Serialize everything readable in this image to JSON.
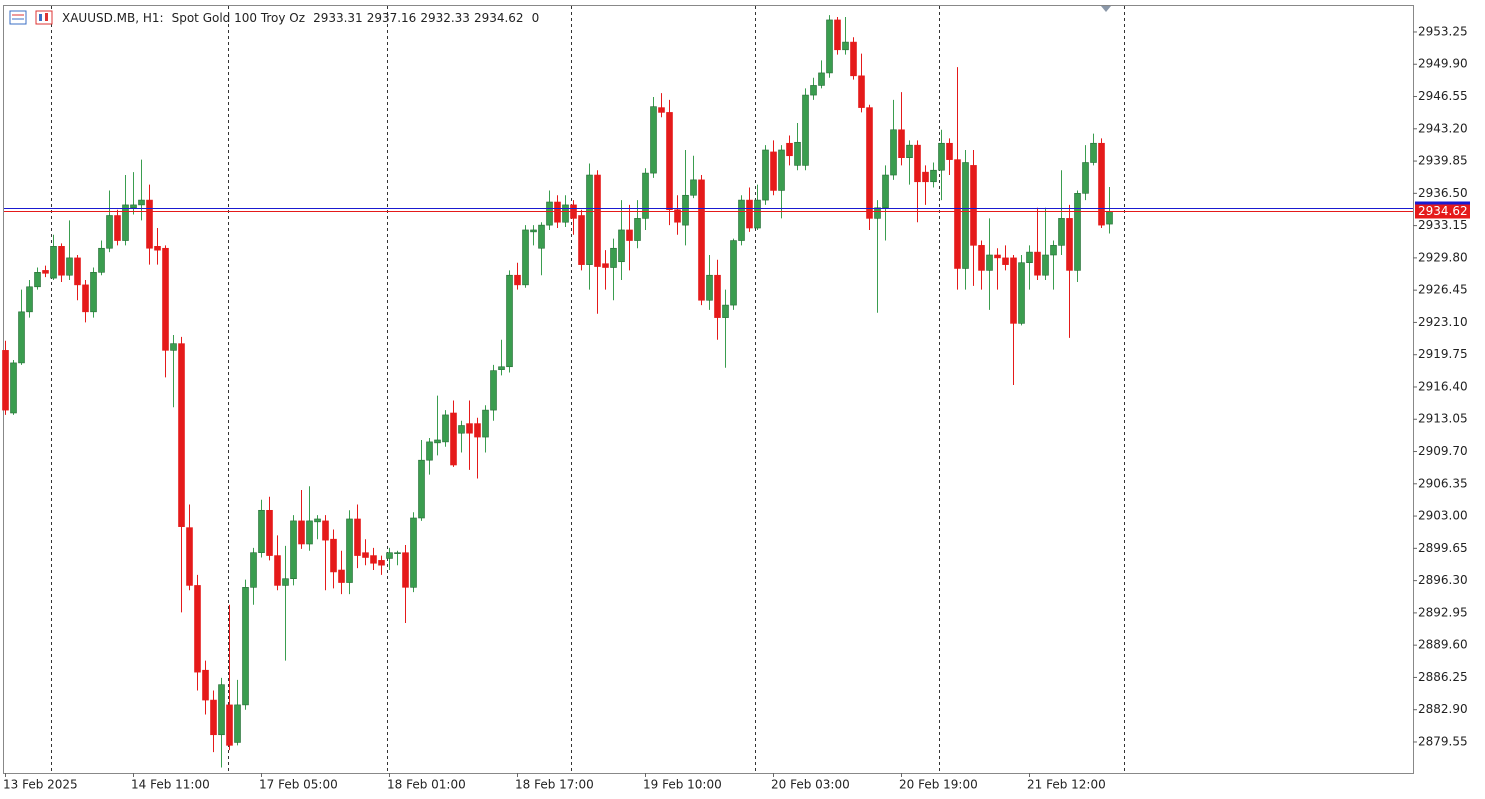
{
  "header": {
    "symbol": "XAUUSD.MB, H1:",
    "description": "Spot Gold 100 Troy Oz",
    "open": 2933.31,
    "high": 2937.16,
    "low": 2932.33,
    "close": 2934.62,
    "volume": 0
  },
  "chart_data": {
    "type": "candlestick",
    "categories": [
      "13 Feb 2025",
      null,
      null,
      null,
      null,
      null,
      null,
      null,
      null,
      null,
      null,
      null,
      null,
      null,
      null,
      null,
      "14 Feb 11:00",
      null,
      null,
      null,
      null,
      null,
      null,
      null,
      null,
      null,
      null,
      null,
      null,
      null,
      null,
      null,
      "17 Feb 05:00",
      null,
      null,
      null,
      null,
      null,
      null,
      null,
      null,
      null,
      null,
      null,
      null,
      null,
      null,
      null,
      "18 Feb 01:00",
      null,
      null,
      null,
      null,
      null,
      null,
      null,
      null,
      null,
      null,
      null,
      null,
      null,
      null,
      null,
      "18 Feb 17:00",
      null,
      null,
      null,
      null,
      null,
      null,
      null,
      null,
      null,
      null,
      null,
      null,
      null,
      null,
      null,
      "19 Feb 10:00",
      null,
      null,
      null,
      null,
      null,
      null,
      null,
      null,
      null,
      null,
      null,
      null,
      null,
      null,
      null,
      "20 Feb 03:00",
      null,
      null,
      null,
      null,
      null,
      null,
      null,
      null,
      null,
      null,
      null,
      null,
      null,
      null,
      null,
      "20 Feb 19:00",
      null,
      null,
      null,
      null,
      null,
      null,
      null,
      null,
      null,
      null,
      null,
      null,
      null,
      null,
      null,
      "21 Feb 12:00",
      null,
      null,
      null,
      null,
      null,
      null,
      null,
      null,
      null,
      null
    ],
    "open": [
      2920.2,
      2913.7,
      2918.9,
      2924.2,
      2926.8,
      2928.5,
      2927.7,
      2931.0,
      2928.0,
      2929.8,
      2927.0,
      2924.2,
      2928.3,
      2930.8,
      2934.2,
      2931.6,
      2935.0,
      2935.3,
      2935.8,
      2931.0,
      2930.8,
      2920.2,
      2920.9,
      2901.8,
      2895.8,
      2887.0,
      2883.9,
      2880.3,
      2883.4,
      2879.5,
      2883.4,
      2895.6,
      2899.2,
      2903.6,
      2898.9,
      2895.8,
      2896.5,
      2902.5,
      2900.1,
      2902.4,
      2902.5,
      2900.6,
      2897.4,
      2896.1,
      2902.7,
      2899.2,
      2898.9,
      2898.4,
      2898.6,
      2899.1,
      2899.2,
      2895.6,
      2902.8,
      2908.8,
      2910.6,
      2910.7,
      2913.7,
      2911.6,
      2912.6,
      2912.6,
      2911.2,
      2914.0,
      2918.2,
      2918.5,
      2928.0,
      2927.0,
      2932.5,
      2930.8,
      2933.2,
      2935.6,
      2933.5,
      2935.3,
      2934.2,
      2929.1,
      2938.4,
      2929.2,
      2928.8,
      2929.4,
      2932.7,
      2931.6,
      2933.9,
      2938.6,
      2945.4,
      2944.9,
      2934.8,
      2933.2,
      2936.3,
      2937.9,
      2925.4,
      2928.0,
      2923.6,
      2924.9,
      2931.6,
      2935.8,
      2932.9,
      2935.8,
      2940.8,
      2936.8,
      2941.7,
      2939.4,
      2939.4,
      2946.7,
      2947.7,
      2949.0,
      2954.5,
      2951.4,
      2952.2,
      2948.7,
      2945.4,
      2933.9,
      2935.0,
      2938.4,
      2943.1,
      2940.2,
      2941.5,
      2938.7,
      2937.7,
      2938.9,
      2941.7,
      2940.0,
      2928.7,
      2939.4,
      2931.1,
      2928.5,
      2930.1,
      2929.8,
      2929.8,
      2923.0,
      2929.3,
      2930.4,
      2928.0,
      2930.1,
      2931.1,
      2933.9,
      2928.5,
      2936.5,
      2939.7,
      2941.7,
      2933.31
    ],
    "high": [
      2921.2,
      2919.2,
      2926.5,
      2927.5,
      2928.8,
      2929.0,
      2932.2,
      2931.3,
      2933.7,
      2930.1,
      2927.5,
      2928.8,
      2931.6,
      2936.8,
      2934.8,
      2938.4,
      2938.7,
      2940.0,
      2937.4,
      2932.9,
      2931.1,
      2921.8,
      2921.6,
      2904.2,
      2896.9,
      2888.0,
      2884.9,
      2886.2,
      2893.8,
      2886.0,
      2896.4,
      2899.7,
      2904.7,
      2905.0,
      2901.0,
      2899.9,
      2903.1,
      2905.7,
      2906.1,
      2903.1,
      2903.1,
      2901.6,
      2899.4,
      2903.6,
      2904.2,
      2900.6,
      2899.7,
      2898.9,
      2899.7,
      2899.4,
      2900.0,
      2903.4,
      2910.9,
      2911.1,
      2915.5,
      2914.0,
      2915.0,
      2912.9,
      2915.0,
      2913.2,
      2914.5,
      2918.7,
      2921.3,
      2928.5,
      2929.3,
      2933.2,
      2933.2,
      2933.5,
      2936.8,
      2936.3,
      2936.3,
      2935.8,
      2934.8,
      2939.6,
      2938.9,
      2930.6,
      2931.8,
      2935.8,
      2935.3,
      2935.8,
      2939.1,
      2946.5,
      2946.9,
      2946.2,
      2936.3,
      2941.0,
      2940.4,
      2938.4,
      2930.1,
      2929.6,
      2926.5,
      2931.8,
      2936.3,
      2937.1,
      2937.4,
      2941.5,
      2942.0,
      2941.5,
      2942.5,
      2943.8,
      2947.4,
      2948.5,
      2950.3,
      2955.0,
      2954.8,
      2954.8,
      2952.7,
      2951.0,
      2945.7,
      2935.8,
      2939.4,
      2946.2,
      2947.0,
      2942.0,
      2942.0,
      2939.4,
      2939.7,
      2943.1,
      2942.2,
      2949.6,
      2941.0,
      2941.0,
      2931.6,
      2933.9,
      2930.8,
      2931.1,
      2930.1,
      2930.1,
      2931.1,
      2935.0,
      2935.0,
      2931.6,
      2938.9,
      2935.3,
      2936.8,
      2941.5,
      2942.7,
      2942.2,
      2937.16
    ],
    "low": [
      2913.5,
      2913.5,
      2918.7,
      2923.6,
      2926.5,
      2927.8,
      2927.5,
      2927.3,
      2927.5,
      2925.4,
      2923.1,
      2923.6,
      2928.0,
      2930.4,
      2931.1,
      2931.1,
      2934.3,
      2933.7,
      2929.1,
      2929.1,
      2917.4,
      2914.3,
      2893.0,
      2895.3,
      2884.9,
      2882.4,
      2878.5,
      2876.9,
      2878.7,
      2879.2,
      2882.9,
      2893.8,
      2898.7,
      2898.4,
      2895.3,
      2888.0,
      2895.8,
      2899.6,
      2899.4,
      2900.6,
      2895.3,
      2895.5,
      2894.9,
      2894.9,
      2897.6,
      2897.9,
      2897.4,
      2896.9,
      2897.4,
      2897.9,
      2891.9,
      2895.1,
      2902.5,
      2907.3,
      2909.3,
      2910.2,
      2908.1,
      2909.6,
      2907.8,
      2906.9,
      2909.6,
      2912.9,
      2917.6,
      2917.9,
      2926.5,
      2926.7,
      2931.1,
      2928.0,
      2932.7,
      2932.9,
      2933.0,
      2932.2,
      2928.5,
      2926.5,
      2924.0,
      2926.5,
      2925.4,
      2927.5,
      2928.5,
      2930.8,
      2932.7,
      2938.1,
      2944.4,
      2933.2,
      2932.2,
      2931.1,
      2936.0,
      2924.9,
      2924.4,
      2921.3,
      2918.4,
      2924.4,
      2931.1,
      2932.5,
      2932.7,
      2935.3,
      2936.3,
      2933.9,
      2939.4,
      2938.9,
      2938.9,
      2946.2,
      2947.4,
      2948.5,
      2950.9,
      2950.9,
      2948.3,
      2944.9,
      2932.7,
      2924.1,
      2931.6,
      2937.9,
      2939.4,
      2937.4,
      2933.5,
      2935.3,
      2937.1,
      2935.8,
      2938.4,
      2926.5,
      2926.5,
      2926.9,
      2926.5,
      2924.4,
      2926.5,
      2928.5,
      2916.6,
      2922.8,
      2926.5,
      2927.5,
      2927.5,
      2926.5,
      2930.1,
      2921.5,
      2927.3,
      2935.8,
      2939.4,
      2932.9,
      2932.33
    ],
    "close": [
      2914.0,
      2918.9,
      2924.2,
      2926.8,
      2928.3,
      2928.2,
      2931.0,
      2928.0,
      2929.8,
      2927.0,
      2924.2,
      2928.3,
      2930.8,
      2934.2,
      2931.6,
      2935.3,
      2935.3,
      2935.8,
      2930.8,
      2930.6,
      2920.2,
      2920.9,
      2901.9,
      2895.8,
      2886.8,
      2883.9,
      2880.3,
      2885.5,
      2879.2,
      2883.4,
      2895.6,
      2899.2,
      2903.6,
      2898.9,
      2895.8,
      2896.5,
      2902.5,
      2900.1,
      2902.5,
      2902.7,
      2900.5,
      2897.2,
      2896.1,
      2902.7,
      2898.9,
      2898.7,
      2898.1,
      2897.9,
      2899.2,
      2899.2,
      2895.6,
      2902.8,
      2908.8,
      2910.7,
      2910.9,
      2913.5,
      2908.3,
      2912.4,
      2911.6,
      2911.2,
      2914.0,
      2918.1,
      2918.5,
      2928.0,
      2927.0,
      2932.7,
      2932.7,
      2933.2,
      2935.6,
      2933.5,
      2935.3,
      2933.9,
      2929.1,
      2938.4,
      2928.9,
      2928.8,
      2930.8,
      2932.7,
      2931.6,
      2933.9,
      2938.6,
      2945.5,
      2944.9,
      2934.8,
      2933.5,
      2936.3,
      2937.9,
      2925.4,
      2928.0,
      2923.6,
      2924.9,
      2931.6,
      2935.8,
      2932.9,
      2935.8,
      2941.0,
      2936.8,
      2941.0,
      2940.4,
      2941.8,
      2946.7,
      2947.7,
      2949.0,
      2954.5,
      2951.4,
      2952.2,
      2948.7,
      2945.4,
      2933.9,
      2935.0,
      2938.4,
      2943.1,
      2940.2,
      2941.5,
      2937.7,
      2937.7,
      2938.9,
      2941.7,
      2940.0,
      2928.7,
      2939.7,
      2931.1,
      2928.5,
      2930.1,
      2929.8,
      2929.1,
      2923.0,
      2929.3,
      2930.4,
      2928.0,
      2930.1,
      2931.1,
      2933.9,
      2928.5,
      2936.5,
      2939.7,
      2941.7,
      2933.2,
      2934.62
    ],
    "up_color": "#3a9d4f",
    "down_color": "#e51a1a",
    "ylim": [
      2876.33,
      2956.05
    ],
    "yticks": [
      2953.25,
      {
        "value": 2949.9,
        "label": "2949.90"
      },
      2946.55,
      {
        "value": 2943.2,
        "label": "2943.20"
      },
      2939.85,
      {
        "value": 2936.5,
        "label": "2936.50"
      },
      2933.15,
      {
        "value": 2929.8,
        "label": "2929.80"
      },
      2926.45,
      {
        "value": 2923.1,
        "label": "2923.10"
      },
      2919.75,
      {
        "value": 2916.4,
        "label": "2916.40"
      },
      2913.05,
      {
        "value": 2909.7,
        "label": "2909.70"
      },
      2906.35,
      {
        "value": 2903,
        "label": "2903.00"
      },
      2899.65,
      {
        "value": 2896.3,
        "label": "2896.30"
      },
      2892.95,
      {
        "value": 2889.6,
        "label": "2889.60"
      },
      2886.25,
      {
        "value": 2882.9,
        "label": "2882.90"
      },
      2879.55
    ],
    "bid": 2934.62,
    "bid_color": "#e51a1a",
    "ask": 2935,
    "ask_color": "#1a1ad0"
  }
}
